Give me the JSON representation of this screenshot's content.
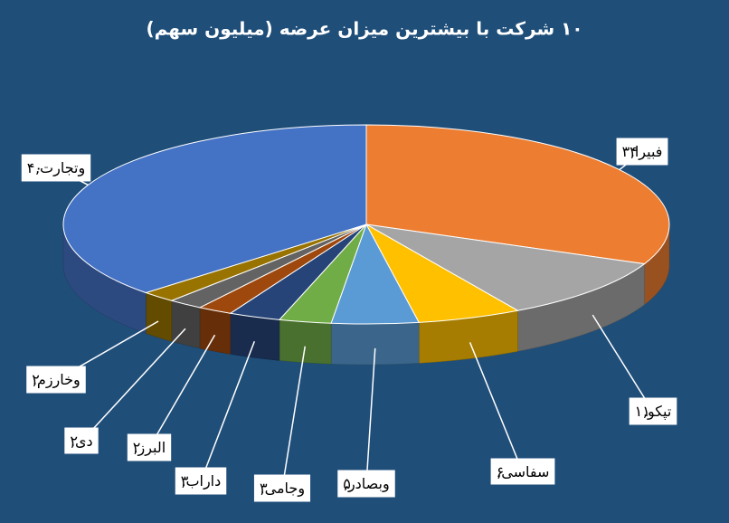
{
  "chart_data": {
    "type": "pie3d",
    "title": "۱۰ شرکت با بیشترین میزان عرضه (میلیون سهم)",
    "categories": [
      "فبیرا",
      "تپکو",
      "سفاسی",
      "وبصادر",
      "وجامی",
      "داراب",
      "البرز",
      "دی",
      "وخارزم",
      "وتجارت"
    ],
    "values": [
      34,
      11,
      6,
      5,
      3,
      3,
      2,
      2,
      2,
      40
    ],
    "value_labels": [
      "۳۴",
      "۱۱",
      "۶",
      "۵",
      "۳",
      "۳",
      "۲",
      "۲",
      "۲",
      "۴۰"
    ],
    "label_separator": ",",
    "colors": [
      "#ed7d31",
      "#a5a5a5",
      "#ffc000",
      "#5b9bd5",
      "#70ad47",
      "#264478",
      "#9e480e",
      "#636363",
      "#997300",
      "#4472c4"
    ]
  }
}
